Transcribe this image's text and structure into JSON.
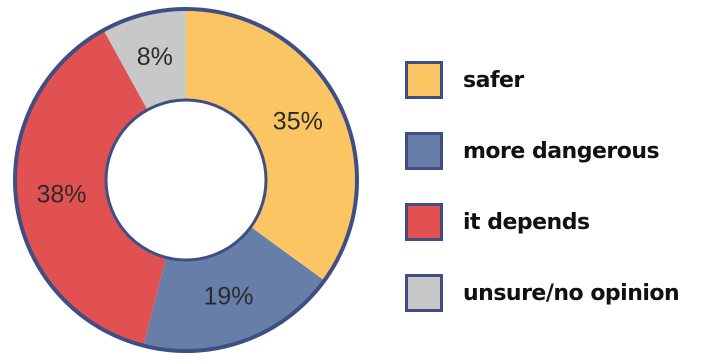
{
  "chart_data": {
    "type": "pie",
    "categories": [
      "safer",
      "more dangerous",
      "it depends",
      "unsure/no opinion"
    ],
    "values": [
      35,
      19,
      38,
      8
    ],
    "value_labels": [
      "35%",
      "19%",
      "38%",
      "8%"
    ],
    "colors": [
      "#fcc564",
      "#667ea8",
      "#e25151",
      "#c8c8c8"
    ],
    "outline_color": "#3f4f86",
    "legend_placement": "right",
    "donut": true
  },
  "legend": {
    "items": [
      {
        "label": "safer",
        "color": "#fcc564"
      },
      {
        "label": "more dangerous",
        "color": "#667ea8"
      },
      {
        "label": "it depends",
        "color": "#e25151"
      },
      {
        "label": "unsure/no opinion",
        "color": "#c8c8c8"
      }
    ]
  }
}
